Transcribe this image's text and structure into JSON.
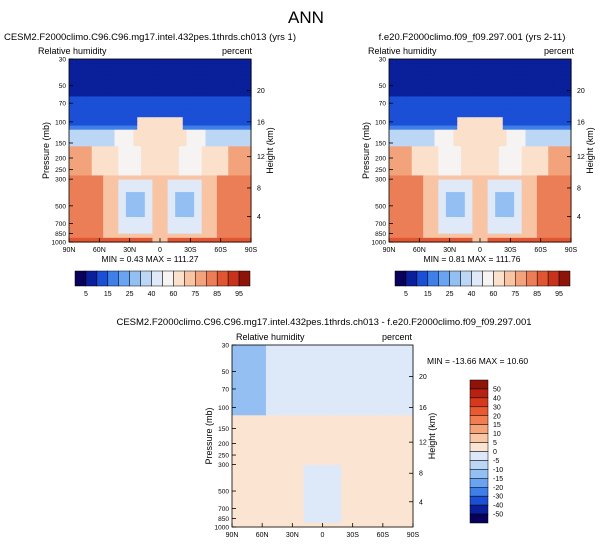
{
  "figure_title": "ANN",
  "chart_data": [
    {
      "type": "heatmap",
      "title": "CESM2.F2000climo.C96.C96.mg17.intel.432pes.1thrds.ch013 (yrs 1)",
      "left_label": "Relative humidity",
      "right_label": "percent",
      "ylabel": "Pressure (mb)",
      "ylabel_right": "Height (km)",
      "x_ticks": [
        "90N",
        "60N",
        "30N",
        "0",
        "30S",
        "60S",
        "90S"
      ],
      "y_ticks": [
        "30",
        "50",
        "70",
        "100",
        "150",
        "200",
        "250",
        "300",
        "500",
        "700",
        "850",
        "1000"
      ],
      "height_ticks": [
        "20",
        "16",
        "12",
        "8",
        "4"
      ],
      "stats": "MIN =  0.43  MAX = 111.27",
      "colorbar": {
        "orientation": "horizontal",
        "labels": [
          "5",
          "15",
          "25",
          "40",
          "60",
          "75",
          "85",
          "95"
        ],
        "levels": [
          5,
          10,
          15,
          20,
          25,
          30,
          40,
          50,
          60,
          70,
          75,
          80,
          85,
          90,
          95
        ],
        "colors": [
          "#08005a",
          "#0a1f9a",
          "#1a4fd6",
          "#3f7fe8",
          "#6aa3f0",
          "#94bff2",
          "#bcd6f5",
          "#dfe9f7",
          "#f6f4f2",
          "#fbe0cc",
          "#f8c4a4",
          "#f3a37c",
          "#ec7e57",
          "#e05632",
          "#c9321a",
          "#8e1309"
        ]
      }
    },
    {
      "type": "heatmap",
      "title": "f.e20.F2000climo.f09_f09.297.001 (yrs 2-11)",
      "left_label": "Relative humidity",
      "right_label": "percent",
      "ylabel": "Pressure (mb)",
      "ylabel_right": "Height (km)",
      "x_ticks": [
        "90N",
        "60N",
        "30N",
        "0",
        "30S",
        "60S",
        "90S"
      ],
      "y_ticks": [
        "30",
        "50",
        "70",
        "100",
        "150",
        "200",
        "250",
        "300",
        "500",
        "700",
        "850",
        "1000"
      ],
      "height_ticks": [
        "20",
        "16",
        "12",
        "8",
        "4"
      ],
      "stats": "MIN =  0.81  MAX = 111.76",
      "colorbar": {
        "orientation": "horizontal",
        "labels": [
          "5",
          "15",
          "25",
          "40",
          "60",
          "75",
          "85",
          "95"
        ],
        "levels": [
          5,
          10,
          15,
          20,
          25,
          30,
          40,
          50,
          60,
          70,
          75,
          80,
          85,
          90,
          95
        ],
        "colors": [
          "#08005a",
          "#0a1f9a",
          "#1a4fd6",
          "#3f7fe8",
          "#6aa3f0",
          "#94bff2",
          "#bcd6f5",
          "#dfe9f7",
          "#f6f4f2",
          "#fbe0cc",
          "#f8c4a4",
          "#f3a37c",
          "#ec7e57",
          "#e05632",
          "#c9321a",
          "#8e1309"
        ]
      }
    },
    {
      "type": "heatmap",
      "title": "CESM2.F2000climo.C96.C96.mg17.intel.432pes.1thrds.ch013 - f.e20.F2000climo.f09_f09.297.001",
      "left_label": "Relative humidity",
      "right_label": "percent",
      "ylabel": "Pressure (mb)",
      "ylabel_right": "Height (km)",
      "x_ticks": [
        "90N",
        "60N",
        "30N",
        "0",
        "30S",
        "60S",
        "90S"
      ],
      "y_ticks": [
        "30",
        "50",
        "70",
        "100",
        "150",
        "200",
        "250",
        "300",
        "500",
        "700",
        "850",
        "1000"
      ],
      "height_ticks": [
        "20",
        "16",
        "12",
        "8",
        "4"
      ],
      "stats": "MIN = -13.66  MAX =  10.60",
      "colorbar": {
        "orientation": "vertical",
        "labels": [
          "50",
          "40",
          "30",
          "20",
          "15",
          "10",
          "5",
          "0",
          "-5",
          "-10",
          "-15",
          "-20",
          "-30",
          "-40",
          "-50"
        ],
        "levels": [
          50,
          40,
          30,
          20,
          15,
          10,
          5,
          0,
          -5,
          -10,
          -15,
          -20,
          -30,
          -40,
          -50
        ],
        "colors": [
          "#8e1309",
          "#b8210f",
          "#d63a1c",
          "#e85a30",
          "#f07e50",
          "#f5a47a",
          "#f9c6a6",
          "#fce4d2",
          "#dde9f8",
          "#bcd6f5",
          "#94bff2",
          "#6aa3f0",
          "#3f7fe8",
          "#1a4fd6",
          "#0a1f9a",
          "#08005a"
        ]
      }
    }
  ]
}
